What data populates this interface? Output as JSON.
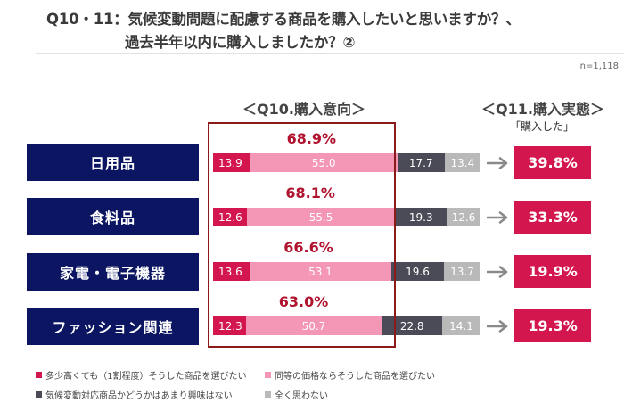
{
  "title": {
    "line1": "Q10・11：気候変動問題に配慮する商品を購入したいと思いますか？、",
    "line2": "過去半年以内に購入しましたか？②"
  },
  "sample_note": "n=1,118",
  "sections": {
    "q10_heading": "＜Q10.購入意向＞",
    "q11_heading": "＜Q11.購入実態＞",
    "q11_sub": "「購入した」"
  },
  "colors": {
    "navy": "#0b1562",
    "magenta": "#d3164d",
    "pink": "#f496b5",
    "dark_gray": "#4b4b57",
    "light_gray": "#b9b9b9",
    "highlight_red": "#8b1a1a",
    "arrow_gray": "#8a8a8a"
  },
  "chart_data": {
    "type": "bar",
    "orientation": "horizontal",
    "stacked": true,
    "unit": "%",
    "categories": [
      "日用品",
      "食料品",
      "家電・電子機器",
      "ファッション関連"
    ],
    "series": [
      {
        "name": "多少高くても（1割程度）そうした商品を選びたい",
        "color": "#d3164d",
        "values": [
          13.9,
          12.6,
          13.6,
          12.3
        ]
      },
      {
        "name": "同等の価格ならそうした商品を選びたい",
        "color": "#f496b5",
        "values": [
          55.0,
          55.5,
          53.1,
          50.7
        ]
      },
      {
        "name": "気候変動対応商品かどうかはあまり興味はない",
        "color": "#4b4b57",
        "values": [
          17.7,
          19.3,
          19.6,
          22.8
        ]
      },
      {
        "name": "全く思わない",
        "color": "#b9b9b9",
        "values": [
          13.4,
          12.6,
          13.7,
          14.1
        ]
      }
    ],
    "intent_totals": [
      68.9,
      68.1,
      66.6,
      63.0
    ],
    "purchase_rates": [
      39.8,
      33.3,
      19.9,
      19.3
    ],
    "xlim": [
      0,
      100
    ],
    "legend_position": "bottom",
    "grid": false
  }
}
